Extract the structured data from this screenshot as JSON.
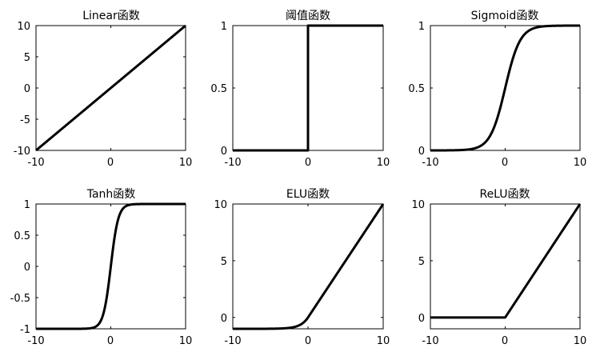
{
  "chart_data": [
    {
      "type": "line",
      "title": "Linear函数",
      "func": "linear",
      "xlim": [
        -10,
        10
      ],
      "ylim": [
        -10,
        10
      ],
      "xticks": [
        -10,
        0,
        10
      ],
      "yticks": [
        -10,
        -5,
        0,
        5,
        10
      ],
      "xtick_labels": [
        "-10",
        "0",
        "10"
      ],
      "ytick_labels": [
        "-10",
        "-5",
        "0",
        "5",
        "10"
      ],
      "series": [
        {
          "x": [
            -10,
            10
          ],
          "y": [
            -10,
            10
          ]
        }
      ]
    },
    {
      "type": "line",
      "title": "阈值函数",
      "func": "threshold",
      "xlim": [
        -10,
        10
      ],
      "ylim": [
        0,
        1
      ],
      "xticks": [
        -10,
        0,
        10
      ],
      "yticks": [
        0,
        0.5,
        1
      ],
      "xtick_labels": [
        "-10",
        "0",
        "10"
      ],
      "ytick_labels": [
        "0",
        "0.5",
        "1"
      ],
      "series": [
        {
          "x": [
            -10,
            0,
            0,
            10
          ],
          "y": [
            0,
            0,
            1,
            1
          ]
        }
      ]
    },
    {
      "type": "line",
      "title": "Sigmoid函数",
      "func": "sigmoid",
      "xlim": [
        -10,
        10
      ],
      "ylim": [
        0,
        1
      ],
      "xticks": [
        -10,
        0,
        10
      ],
      "yticks": [
        0,
        0.5,
        1
      ],
      "xtick_labels": [
        "-10",
        "0",
        "10"
      ],
      "ytick_labels": [
        "0",
        "0.5",
        "1"
      ],
      "series": [
        {
          "x": [
            -10,
            -5,
            -2,
            0,
            2,
            5,
            10
          ],
          "y": [
            0.0,
            0.01,
            0.12,
            0.5,
            0.88,
            0.99,
            1.0
          ]
        }
      ]
    },
    {
      "type": "line",
      "title": "Tanh函数",
      "func": "tanh",
      "xlim": [
        -10,
        10
      ],
      "ylim": [
        -1,
        1
      ],
      "xticks": [
        -10,
        0,
        10
      ],
      "yticks": [
        -1,
        -0.5,
        0,
        0.5,
        1
      ],
      "xtick_labels": [
        "-10",
        "0",
        "10"
      ],
      "ytick_labels": [
        "-1",
        "-0.5",
        "0",
        "0.5",
        "1"
      ],
      "series": [
        {
          "x": [
            -10,
            -3,
            -1,
            0,
            1,
            3,
            10
          ],
          "y": [
            -1.0,
            -0.99,
            -0.76,
            0,
            0.76,
            0.99,
            1.0
          ]
        }
      ]
    },
    {
      "type": "line",
      "title": "ELU函数",
      "func": "elu",
      "xlim": [
        -10,
        10
      ],
      "ylim": [
        -1,
        10
      ],
      "xticks": [
        -10,
        0,
        10
      ],
      "yticks": [
        0,
        5,
        10
      ],
      "xtick_labels": [
        "-10",
        "0",
        "10"
      ],
      "ytick_labels": [
        "0",
        "5",
        "10"
      ],
      "series": [
        {
          "x": [
            -10,
            -3,
            -1,
            0,
            5,
            10
          ],
          "y": [
            -1.0,
            -0.95,
            -0.63,
            0,
            5,
            10
          ]
        }
      ]
    },
    {
      "type": "line",
      "title": "ReLU函数",
      "func": "relu",
      "xlim": [
        -10,
        10
      ],
      "ylim": [
        -1,
        10
      ],
      "xticks": [
        -10,
        0,
        10
      ],
      "yticks": [
        0,
        5,
        10
      ],
      "xtick_labels": [
        "-10",
        "0",
        "10"
      ],
      "ytick_labels": [
        "0",
        "5",
        "10"
      ],
      "series": [
        {
          "x": [
            -10,
            0,
            10
          ],
          "y": [
            0,
            0,
            10
          ]
        }
      ]
    }
  ]
}
